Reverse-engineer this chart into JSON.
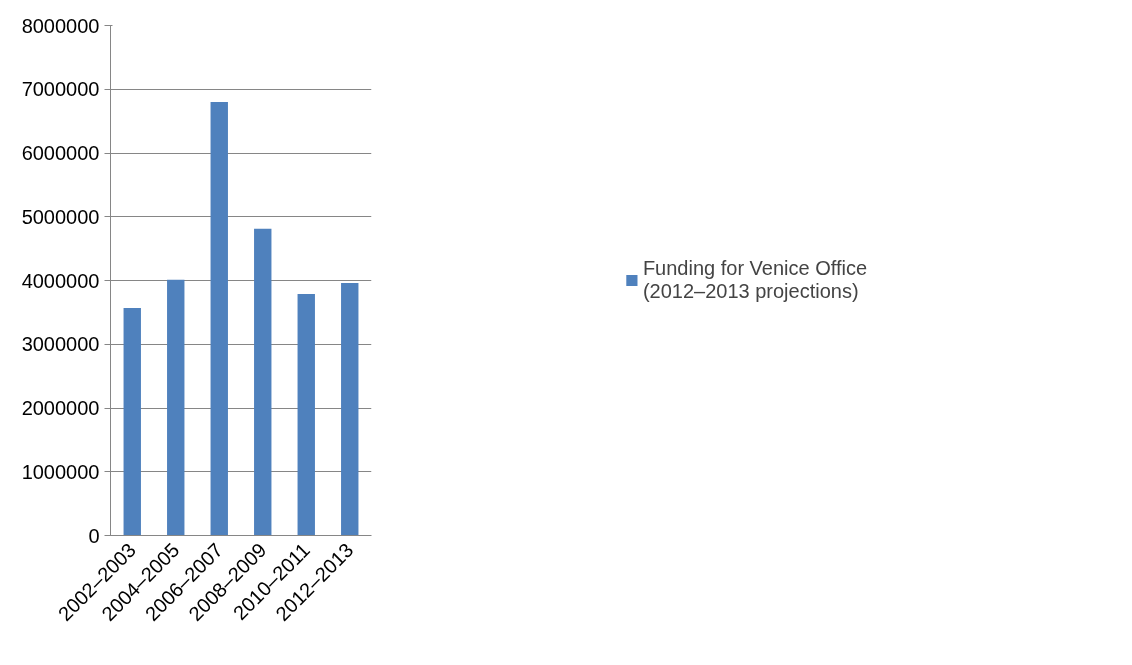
{
  "chart_data": {
    "type": "bar",
    "categories": [
      "2002–2003",
      "2004–2005",
      "2006–2007",
      "2008–2009",
      "2010–2011",
      "2012–2013"
    ],
    "series": [
      {
        "name": "Funding for Venice Office (2012–2013 projections)",
        "color": "#4f81bd",
        "values": [
          3570000,
          4010000,
          6800000,
          4810000,
          3790000,
          3960000
        ]
      }
    ],
    "ylim": [
      0,
      8000000
    ],
    "yticks": [
      0,
      1000000,
      2000000,
      3000000,
      4000000,
      5000000,
      6000000,
      7000000,
      8000000
    ],
    "grid": "y",
    "legend": "right"
  }
}
